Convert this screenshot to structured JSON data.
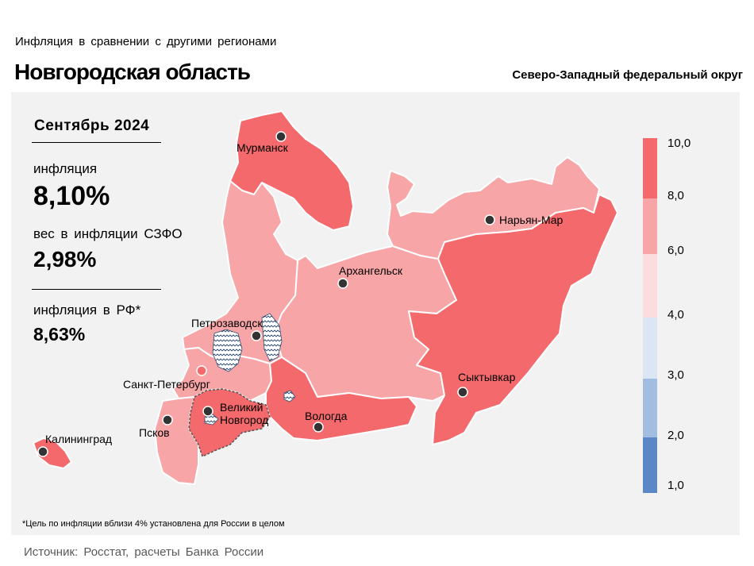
{
  "header": {
    "subtitle": "Инфляция в сравнении с другими регионами",
    "title": "Новгородская область",
    "district": "Северо-Западный федеральный округ"
  },
  "stats": {
    "month": "Сентябрь 2024",
    "inflation_label": "инфляция",
    "inflation_value": "8,10%",
    "weight_label": "вес в инфляции СЗФО",
    "weight_value": "2,98%",
    "rf_label": "инфляция в РФ*",
    "rf_value": "8,63%"
  },
  "cities": {
    "murmansk": "Мурманск",
    "naryan_mar": "Нарьян-Мар",
    "arkhangelsk": "Архангельск",
    "petrozavodsk": "Петрозаводск",
    "spb": "Санкт-Петербург",
    "novgorod_1": "Великий",
    "novgorod_2": "Новгород",
    "pskov": "Псков",
    "vologda": "Вологда",
    "syktyvkar": "Сыктывкар",
    "kaliningrad": "Калининград"
  },
  "legend": {
    "ticks": [
      "10,0",
      "8,0",
      "6,0",
      "4,0",
      "3,0",
      "2,0",
      "1,0"
    ],
    "colors": {
      "8-10": "#f4696b",
      "6-8": "#f7a5a7",
      "4-6": "#fbdde0",
      "3-4": "#dbe5f4",
      "2-3": "#a2bde0",
      "1-2": "#5b87c7"
    }
  },
  "regions": {
    "Мурманск": "8-10",
    "Нарьян-Мар": "6-8",
    "Архангельск": "6-8",
    "Петрозаводск": "6-8",
    "Санкт-Петербург": "4-6",
    "Ленинградская область": "6-8",
    "Великий Новгород": "8-10",
    "Псков": "6-8",
    "Вологда": "8-10",
    "Сыктывкар": "8-10",
    "Калининград": "8-10"
  },
  "footnote": "*Цель по инфляции вблизи 4% установлена для России в целом",
  "source": "Источник: Росстат, расчеты Банка России"
}
